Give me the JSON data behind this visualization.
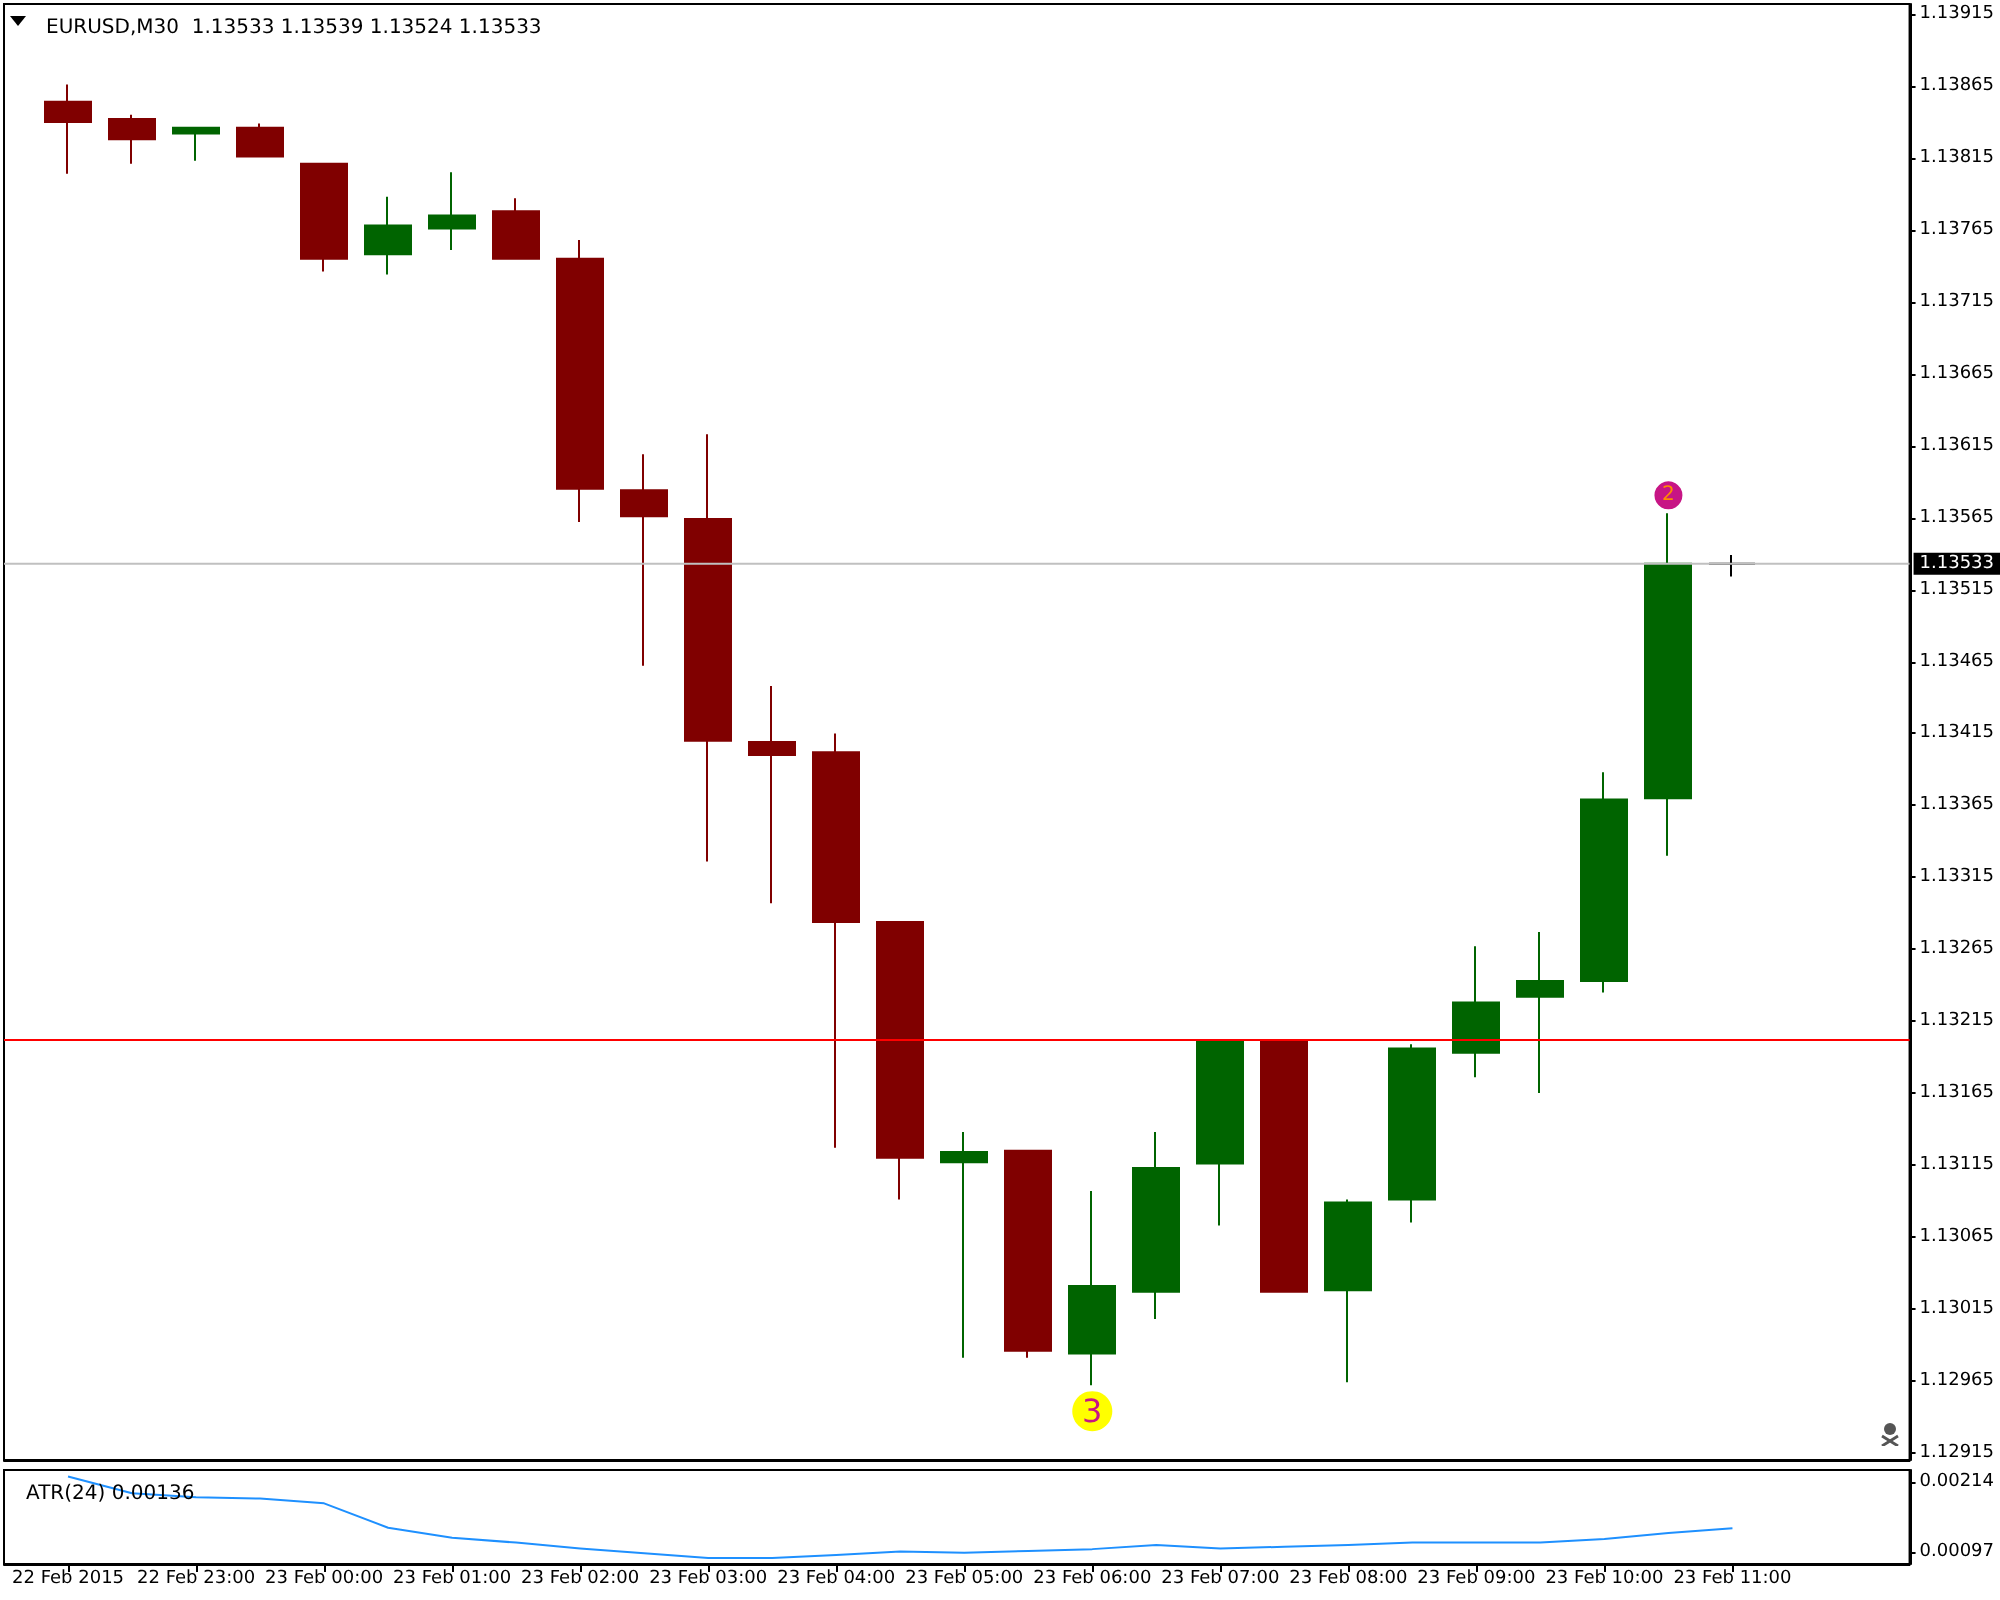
{
  "chart_data": [
    {
      "type": "candlestick",
      "title": "EURUSD,M30  1.13533 1.13539 1.13524 1.13533",
      "x": [
        "2015-02-22T22:00",
        "2015-02-22T22:30",
        "2015-02-22T23:00",
        "2015-02-22T23:30",
        "2015-02-23T00:00",
        "2015-02-23T00:30",
        "2015-02-23T01:00",
        "2015-02-23T01:30",
        "2015-02-23T02:00",
        "2015-02-23T02:30",
        "2015-02-23T03:00",
        "2015-02-23T03:30",
        "2015-02-23T04:00",
        "2015-02-23T04:30",
        "2015-02-23T05:00",
        "2015-02-23T05:30",
        "2015-02-23T06:00",
        "2015-02-23T06:30",
        "2015-02-23T07:00",
        "2015-02-23T07:30",
        "2015-02-23T08:00",
        "2015-02-23T08:30",
        "2015-02-23T09:00",
        "2015-02-23T09:30",
        "2015-02-23T10:00",
        "2015-02-23T10:30",
        "2015-02-23T11:00"
      ],
      "ohlc": [
        [
          1.13854,
          1.13866,
          1.13804,
          1.1384
        ],
        [
          1.13842,
          1.13845,
          1.13811,
          1.13828
        ],
        [
          1.13832,
          1.13836,
          1.13813,
          1.13836
        ],
        [
          1.13836,
          1.13839,
          1.13816,
          1.13816
        ],
        [
          1.13811,
          1.13811,
          1.13736,
          1.13745
        ],
        [
          1.13748,
          1.13788,
          1.13734,
          1.13768
        ],
        [
          1.13766,
          1.13805,
          1.13751,
          1.13775
        ],
        [
          1.13778,
          1.13787,
          1.13745,
          1.13745
        ],
        [
          1.13745,
          1.13758,
          1.13562,
          1.13585
        ],
        [
          1.13584,
          1.13609,
          1.13462,
          1.13566
        ],
        [
          1.13564,
          1.13623,
          1.13326,
          1.1341
        ],
        [
          1.13409,
          1.13448,
          1.13297,
          1.134
        ],
        [
          1.13402,
          1.13415,
          1.13127,
          1.13284
        ],
        [
          1.13284,
          1.13284,
          1.13091,
          1.1312
        ],
        [
          1.13117,
          1.13138,
          1.12981,
          1.13124
        ],
        [
          1.13125,
          1.13125,
          1.12981,
          1.12986
        ],
        [
          1.12984,
          1.13097,
          1.12962,
          1.13031
        ],
        [
          1.13027,
          1.13138,
          1.13008,
          1.13113
        ],
        [
          1.13116,
          1.13202,
          1.13073,
          1.13202
        ],
        [
          1.13202,
          1.13202,
          1.13027,
          1.13027
        ],
        [
          1.13028,
          1.13091,
          1.12964,
          1.13089
        ],
        [
          1.13091,
          1.13199,
          1.13075,
          1.13196
        ],
        [
          1.13193,
          1.13267,
          1.13176,
          1.13228
        ],
        [
          1.13232,
          1.13277,
          1.13165,
          1.13243
        ],
        [
          1.13243,
          1.13388,
          1.13235,
          1.13369
        ],
        [
          1.1337,
          1.13568,
          1.1333,
          1.13533
        ],
        [
          1.13533,
          1.13539,
          1.13524,
          1.13533
        ]
      ],
      "colors": [
        "#800000",
        "#800000",
        "#006400",
        "#800000",
        "#800000",
        "#006400",
        "#006400",
        "#800000",
        "#800000",
        "#800000",
        "#800000",
        "#800000",
        "#800000",
        "#800000",
        "#006400",
        "#800000",
        "#006400",
        "#006400",
        "#006400",
        "#800000",
        "#006400",
        "#006400",
        "#006400",
        "#006400",
        "#006400",
        "#006400",
        "#000000"
      ],
      "ylim": [
        1.1291,
        1.13922
      ],
      "yticks": [
        1.13915,
        1.13865,
        1.13815,
        1.13765,
        1.13715,
        1.13665,
        1.13615,
        1.13565,
        1.13515,
        1.13465,
        1.13415,
        1.13365,
        1.13315,
        1.13265,
        1.13215,
        1.13165,
        1.13115,
        1.13065,
        1.13015,
        1.12965,
        1.12915
      ],
      "xlim": [
        "2015-02-22T21:30",
        "2015-02-23T12:23"
      ],
      "tick_labels": "y",
      "ref_lines": [
        {
          "axis": "y",
          "value": 1.13533,
          "label": "1.13533",
          "color": "#c0c0c0"
        },
        {
          "axis": "y",
          "value": 1.13202,
          "color": "#ff0000"
        }
      ],
      "annotations": [
        {
          "text": "2",
          "x": "2015-02-23T10:30",
          "y": 1.13568
        },
        {
          "text": "3",
          "x": "2015-02-23T06:00",
          "y": 1.12962
        }
      ]
    },
    {
      "type": "line",
      "title": "ATR(24) 0.00136",
      "x": [
        "2015-02-22T22:00",
        "2015-02-22T22:30",
        "2015-02-22T23:00",
        "2015-02-22T23:30",
        "2015-02-23T00:00",
        "2015-02-23T00:30",
        "2015-02-23T01:00",
        "2015-02-23T01:30",
        "2015-02-23T02:00",
        "2015-02-23T02:30",
        "2015-02-23T03:00",
        "2015-02-23T03:30",
        "2015-02-23T04:00",
        "2015-02-23T04:30",
        "2015-02-23T05:00",
        "2015-02-23T05:30",
        "2015-02-23T06:00",
        "2015-02-23T06:30",
        "2015-02-23T07:00",
        "2015-02-23T07:30",
        "2015-02-23T08:00",
        "2015-02-23T08:30",
        "2015-02-23T09:00",
        "2015-02-23T09:30",
        "2015-02-23T10:00",
        "2015-02-23T10:30",
        "2015-02-23T11:00"
      ],
      "series": [
        {
          "color": "#1e90ff",
          "values": [
            0.00223,
            0.00195,
            0.00188,
            0.00186,
            0.00178,
            0.00137,
            0.0012,
            0.00112,
            0.00102,
            0.00094,
            0.00086,
            0.00086,
            0.00091,
            0.00097,
            0.00095,
            0.00098,
            0.00101,
            0.00108,
            0.00102,
            0.00105,
            0.00108,
            0.00112,
            0.00112,
            0.00112,
            0.00118,
            0.00128,
            0.00136
          ]
        }
      ],
      "ylim": [
        0.00076,
        0.00234
      ],
      "yticks": [
        0.00214,
        0.00097
      ],
      "xlim": [
        "2015-02-22T21:30",
        "2015-02-23T12:23"
      ],
      "xticks": [
        {
          "value": "2015-02-22T22:00",
          "label": "22 Feb 2015"
        },
        {
          "value": "2015-02-22T23:00",
          "label": "22 Feb 23:00"
        },
        {
          "value": "2015-02-23T00:00",
          "label": "23 Feb 00:00"
        },
        {
          "value": "2015-02-23T01:00",
          "label": "23 Feb 01:00"
        },
        {
          "value": "2015-02-23T02:00",
          "label": "23 Feb 02:00"
        },
        {
          "value": "2015-02-23T03:00",
          "label": "23 Feb 03:00"
        },
        {
          "value": "2015-02-23T04:00",
          "label": "23 Feb 04:00"
        },
        {
          "value": "2015-02-23T05:00",
          "label": "23 Feb 05:00"
        },
        {
          "value": "2015-02-23T06:00",
          "label": "23 Feb 06:00"
        },
        {
          "value": "2015-02-23T07:00",
          "label": "23 Feb 07:00"
        },
        {
          "value": "2015-02-23T08:00",
          "label": "23 Feb 08:00"
        },
        {
          "value": "2015-02-23T09:00",
          "label": "23 Feb 09:00"
        },
        {
          "value": "2015-02-23T10:00",
          "label": "23 Feb 10:00"
        },
        {
          "value": "2015-02-23T11:00",
          "label": "23 Feb 11:00"
        }
      ]
    }
  ]
}
